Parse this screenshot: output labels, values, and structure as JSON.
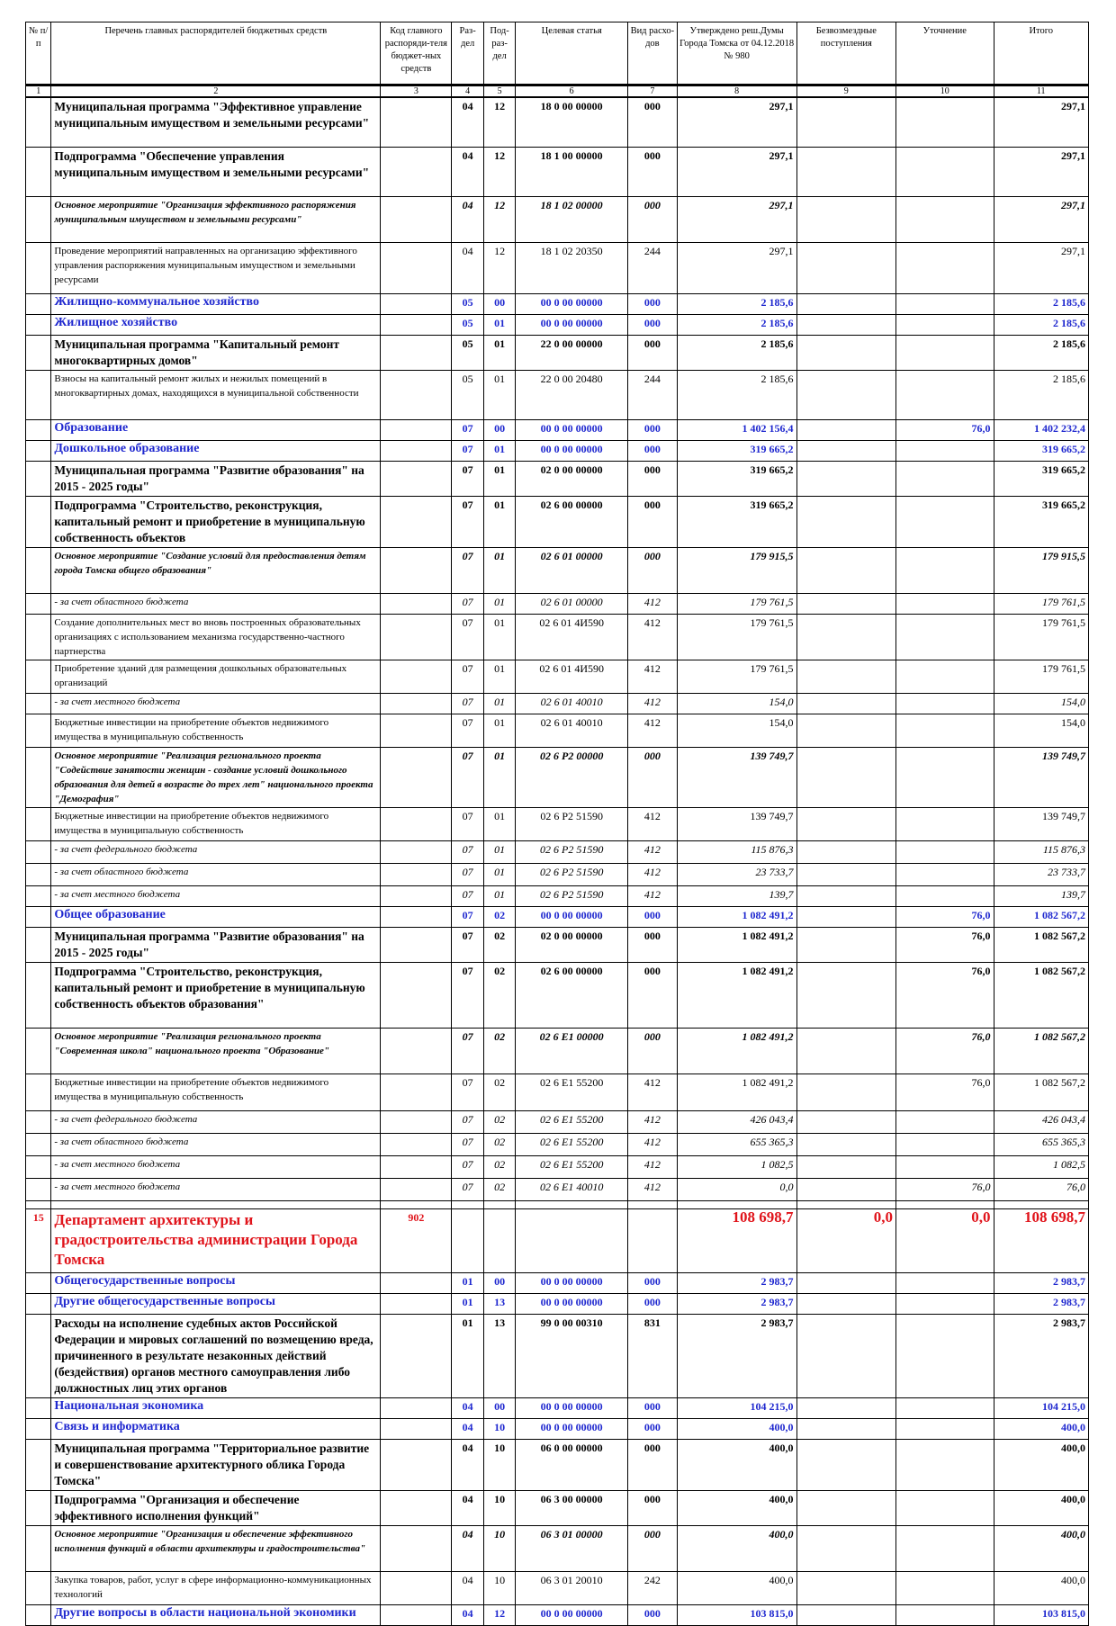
{
  "header": {
    "col1": "№ п/п",
    "col2": "Перечень главных распорядителей бюджетных средств",
    "col3": "Код главного распоряди-теля бюджет-ных средств",
    "col4": "Раз-дел",
    "col5": "Под-раз-дел",
    "col6": "Целевая статья",
    "col7": "Вид расхо-дов",
    "col8": "Утверждено реш.Думы Города Томска от 04.12.2018 № 980",
    "col9": "Безвозмездные поступления",
    "col10": "Уточнение",
    "col11": "Итого"
  },
  "colnums": [
    "1",
    "2",
    "3",
    "4",
    "5",
    "6",
    "7",
    "8",
    "9",
    "10",
    "11"
  ],
  "rows": [
    {
      "style": "bold",
      "h": 52,
      "num": "",
      "name": "Муниципальная программа \"Эффективное управление муниципальным имуществом и земельными ресурсами\"",
      "code": "",
      "razd": "04",
      "podr": "12",
      "cs": "18 0 00 00000",
      "vr": "000",
      "v8": "297,1",
      "v9": "",
      "v10": "",
      "v11": "297,1"
    },
    {
      "style": "bold",
      "h": 52,
      "num": "",
      "name": "Подпрограмма \"Обеспечение управления муниципальным имуществом и земельными ресурсами\"",
      "code": "",
      "razd": "04",
      "podr": "12",
      "cs": "18 1 00 00000",
      "vr": "000",
      "v8": "297,1",
      "v9": "",
      "v10": "",
      "v11": "297,1"
    },
    {
      "style": "boldital",
      "h": 48,
      "num": "",
      "name": "Основное мероприятие \"Организация эффективного распоряжения муниципальным имуществом и земельными ресурсами\"",
      "code": "",
      "razd": "04",
      "podr": "12",
      "cs": "18 1 02 00000",
      "vr": "000",
      "v8": "297,1",
      "v9": "",
      "v10": "",
      "v11": "297,1"
    },
    {
      "style": "plain",
      "h": 54,
      "num": "",
      "name": "Проведение мероприятий направленных на организацию эффективного управления распоряжения муниципальным имуществом и земельными ресурсами",
      "code": "",
      "razd": "04",
      "podr": "12",
      "cs": "18 1 02 20350",
      "vr": "244",
      "v8": "297,1",
      "v9": "",
      "v10": "",
      "v11": "297,1"
    },
    {
      "style": "blue",
      "h": 20,
      "num": "",
      "name": "Жилищно-коммунальное хозяйство",
      "code": "",
      "razd": "05",
      "podr": "00",
      "cs": "00 0 00 00000",
      "vr": "000",
      "v8": "2 185,6",
      "v9": "",
      "v10": "",
      "v11": "2 185,6"
    },
    {
      "style": "blue",
      "h": 20,
      "num": "",
      "name": "Жилищное хозяйство",
      "code": "",
      "razd": "05",
      "podr": "01",
      "cs": "00 0 00 00000",
      "vr": "000",
      "v8": "2 185,6",
      "v9": "",
      "v10": "",
      "v11": "2 185,6"
    },
    {
      "style": "bold",
      "h": 34,
      "num": "",
      "name": "Муниципальная программа \"Капитальный ремонт многоквартирных домов\"",
      "code": "",
      "razd": "05",
      "podr": "01",
      "cs": "22 0 00 00000",
      "vr": "000",
      "v8": "2 185,6",
      "v9": "",
      "v10": "",
      "v11": "2 185,6"
    },
    {
      "style": "plain",
      "h": 52,
      "num": "",
      "name": "Взносы на капитальный ремонт жилых и нежилых помещений в многоквартирных домах, находящихся в муниципальной собственности",
      "code": "",
      "razd": "05",
      "podr": "01",
      "cs": "22 0 00 20480",
      "vr": "244",
      "v8": "2 185,6",
      "v9": "",
      "v10": "",
      "v11": "2 185,6"
    },
    {
      "style": "blue",
      "h": 20,
      "num": "",
      "name": "Образование",
      "code": "",
      "razd": "07",
      "podr": "00",
      "cs": "00 0 00 00000",
      "vr": "000",
      "v8": "1 402 156,4",
      "v9": "",
      "v10": "76,0",
      "v11": "1 402 232,4"
    },
    {
      "style": "blue",
      "h": 20,
      "num": "",
      "name": "Дошкольное образование",
      "code": "",
      "razd": "07",
      "podr": "01",
      "cs": "00 0 00 00000",
      "vr": "000",
      "v8": "319 665,2",
      "v9": "",
      "v10": "",
      "v11": "319 665,2"
    },
    {
      "style": "bold",
      "h": 34,
      "num": "",
      "name": "Муниципальная программа \"Развитие образования\" на 2015 - 2025 годы\"",
      "code": "",
      "razd": "07",
      "podr": "01",
      "cs": "02 0 00 00000",
      "vr": "000",
      "v8": "319 665,2",
      "v9": "",
      "v10": "",
      "v11": "319 665,2"
    },
    {
      "style": "bold",
      "h": 52,
      "num": "",
      "name": "Подпрограмма \"Строительство, реконструкция, капитальный ремонт и приобретение в муниципальную собственность объектов",
      "code": "",
      "razd": "07",
      "podr": "01",
      "cs": "02 6 00 00000",
      "vr": "000",
      "v8": "319 665,2",
      "v9": "",
      "v10": "",
      "v11": "319 665,2"
    },
    {
      "style": "boldital",
      "h": 48,
      "num": "",
      "name": "Основное мероприятие \"Создание условий для предоставления детям города Томска общего образования\"",
      "code": "",
      "razd": "07",
      "podr": "01",
      "cs": "02 6 01 00000",
      "vr": "000",
      "v8": "179 915,5",
      "v9": "",
      "v10": "",
      "v11": "179 915,5"
    },
    {
      "style": "ital",
      "h": 20,
      "num": "",
      "name": "- за счет областного бюджета",
      "code": "",
      "razd": "07",
      "podr": "01",
      "cs": "02 6 01 00000",
      "vr": "412",
      "v8": "179 761,5",
      "v9": "",
      "v10": "",
      "v11": "179 761,5"
    },
    {
      "style": "plain",
      "h": 48,
      "num": "",
      "name": "Создание дополнительных мест во вновь построенных образовательных организациях с использованием механизма государственно-частного партнерства",
      "code": "",
      "razd": "07",
      "podr": "01",
      "cs": "02 6 01 4И590",
      "vr": "412",
      "v8": "179 761,5",
      "v9": "",
      "v10": "",
      "v11": "179 761,5"
    },
    {
      "style": "plain",
      "h": 34,
      "num": "",
      "name": "Приобретение зданий для размещения дошкольных образовательных организаций",
      "code": "",
      "razd": "07",
      "podr": "01",
      "cs": "02 6 01 4И590",
      "vr": "412",
      "v8": "179 761,5",
      "v9": "",
      "v10": "",
      "v11": "179 761,5"
    },
    {
      "style": "ital",
      "h": 20,
      "num": "",
      "name": "- за счет местного бюджета",
      "code": "",
      "razd": "07",
      "podr": "01",
      "cs": "02 6 01 40010",
      "vr": "412",
      "v8": "154,0",
      "v9": "",
      "v10": "",
      "v11": "154,0"
    },
    {
      "style": "plain",
      "h": 34,
      "num": "",
      "name": "Бюджетные инвестиции на приобретение объектов недвижимого имущества в муниципальную собственность",
      "code": "",
      "razd": "07",
      "podr": "01",
      "cs": "02 6 01 40010",
      "vr": "412",
      "v8": "154,0",
      "v9": "",
      "v10": "",
      "v11": "154,0"
    },
    {
      "style": "boldital",
      "h": 64,
      "num": "",
      "name": "Основное мероприятие \"Реализация регионального проекта \"Содействие занятости женщин - создание условий дошкольного образования для детей в возрасте до трех лет\" национального проекта \"Демография\"",
      "code": "",
      "razd": "07",
      "podr": "01",
      "cs": "02 6 P2 00000",
      "vr": "000",
      "v8": "139 749,7",
      "v9": "",
      "v10": "",
      "v11": "139 749,7"
    },
    {
      "style": "plain",
      "h": 34,
      "num": "",
      "name": "Бюджетные инвестиции на приобретение объектов недвижимого имущества в муниципальную собственность",
      "code": "",
      "razd": "07",
      "podr": "01",
      "cs": "02 6 P2 51590",
      "vr": "412",
      "v8": "139 749,7",
      "v9": "",
      "v10": "",
      "v11": "139 749,7"
    },
    {
      "style": "ital",
      "h": 22,
      "num": "",
      "name": "- за счет федерального бюджета",
      "code": "",
      "razd": "07",
      "podr": "01",
      "cs": "02 6 P2 51590",
      "vr": "412",
      "v8": "115 876,3",
      "v9": "",
      "v10": "",
      "v11": "115 876,3"
    },
    {
      "style": "ital",
      "h": 22,
      "num": "",
      "name": "- за счет областного бюджета",
      "code": "",
      "razd": "07",
      "podr": "01",
      "cs": "02 6 P2 51590",
      "vr": "412",
      "v8": "23 733,7",
      "v9": "",
      "v10": "",
      "v11": "23 733,7"
    },
    {
      "style": "ital",
      "h": 20,
      "num": "",
      "name": "- за счет местного бюджета",
      "code": "",
      "razd": "07",
      "podr": "01",
      "cs": "02 6 P2 51590",
      "vr": "412",
      "v8": "139,7",
      "v9": "",
      "v10": "",
      "v11": "139,7"
    },
    {
      "style": "blue",
      "h": 20,
      "num": "",
      "name": "Общее образование",
      "code": "",
      "razd": "07",
      "podr": "02",
      "cs": "00 0 00 00000",
      "vr": "000",
      "v8": "1 082 491,2",
      "v9": "",
      "v10": "76,0",
      "v11": "1 082 567,2"
    },
    {
      "style": "bold",
      "h": 34,
      "num": "",
      "name": "Муниципальная программа \"Развитие образования\" на 2015 - 2025 годы\"",
      "code": "",
      "razd": "07",
      "podr": "02",
      "cs": "02 0 00 00000",
      "vr": "000",
      "v8": "1 082 491,2",
      "v9": "",
      "v10": "76,0",
      "v11": "1 082 567,2"
    },
    {
      "style": "bold",
      "h": 70,
      "num": "",
      "name": "Подпрограмма \"Строительство, реконструкция, капитальный ремонт и приобретение в муниципальную собственность объектов образования\"",
      "code": "",
      "razd": "07",
      "podr": "02",
      "cs": "02 6 00 00000",
      "vr": "000",
      "v8": "1 082 491,2",
      "v9": "",
      "v10": "76,0",
      "v11": "1 082 567,2"
    },
    {
      "style": "boldital",
      "h": 48,
      "num": "",
      "name": "Основное мероприятие \"Реализация регионального проекта \"Современная школа\" национального проекта \"Образование\"",
      "code": "",
      "razd": "07",
      "podr": "02",
      "cs": "02 6 E1 00000",
      "vr": "000",
      "v8": "1 082 491,2",
      "v9": "",
      "v10": "76,0",
      "v11": "1 082 567,2"
    },
    {
      "style": "plain",
      "h": 38,
      "num": "",
      "name": "Бюджетные инвестиции на приобретение объектов недвижимого имущества в муниципальную собственность",
      "code": "",
      "razd": "07",
      "podr": "02",
      "cs": "02 6 E1 55200",
      "vr": "412",
      "v8": "1 082 491,2",
      "v9": "",
      "v10": "76,0",
      "v11": "1 082 567,2"
    },
    {
      "style": "ital",
      "h": 22,
      "num": "",
      "name": "- за счет федерального бюджета",
      "code": "",
      "razd": "07",
      "podr": "02",
      "cs": "02 6 E1 55200",
      "vr": "412",
      "v8": "426 043,4",
      "v9": "",
      "v10": "",
      "v11": "426 043,4"
    },
    {
      "style": "ital",
      "h": 22,
      "num": "",
      "name": "- за счет областного бюджета",
      "code": "",
      "razd": "07",
      "podr": "02",
      "cs": "02 6 E1 55200",
      "vr": "412",
      "v8": "655 365,3",
      "v9": "",
      "v10": "",
      "v11": "655 365,3"
    },
    {
      "style": "ital",
      "h": 22,
      "num": "",
      "name": "- за счет местного бюджета",
      "code": "",
      "razd": "07",
      "podr": "02",
      "cs": "02 6 E1 55200",
      "vr": "412",
      "v8": "1 082,5",
      "v9": "",
      "v10": "",
      "v11": "1 082,5"
    },
    {
      "style": "ital",
      "h": 22,
      "num": "",
      "name": "- за счет местного бюджета",
      "code": "",
      "razd": "07",
      "podr": "02",
      "cs": "02 6 E1 40010",
      "vr": "412",
      "v8": "0,0",
      "v9": "",
      "v10": "76,0",
      "v11": "76,0"
    },
    {
      "style": "spacer",
      "h": 8
    },
    {
      "style": "red",
      "h": 68,
      "num": "15",
      "name": "Департамент архитектуры и градостроительства администрации Города Томска",
      "code": "902",
      "razd": "",
      "podr": "",
      "cs": "",
      "vr": "",
      "v8": "108 698,7",
      "v9": "0,0",
      "v10": "0,0",
      "v11": "108 698,7"
    },
    {
      "style": "blue",
      "h": 20,
      "num": "",
      "name": "Общегосударственные вопросы",
      "code": "",
      "razd": "01",
      "podr": "00",
      "cs": "00 0 00 00000",
      "vr": "000",
      "v8": "2 983,7",
      "v9": "",
      "v10": "",
      "v11": "2 983,7"
    },
    {
      "style": "blue",
      "h": 20,
      "num": "",
      "name": "Другие общегосударственные вопросы",
      "code": "",
      "razd": "01",
      "podr": "13",
      "cs": "00 0 00 00000",
      "vr": "000",
      "v8": "2 983,7",
      "v9": "",
      "v10": "",
      "v11": "2 983,7"
    },
    {
      "style": "bold",
      "h": 86,
      "num": "",
      "name": "Расходы на исполнение судебных актов Российской Федерации и мировых соглашений по возмещению вреда, причиненного в результате незаконных действий (бездействия) органов местного самоуправления либо должностных лиц этих органов",
      "code": "",
      "razd": "01",
      "podr": "13",
      "cs": "99 0 00 00310",
      "vr": "831",
      "v8": "2 983,7",
      "v9": "",
      "v10": "",
      "v11": "2 983,7"
    },
    {
      "style": "blue",
      "h": 20,
      "num": "",
      "name": "Национальная экономика",
      "code": "",
      "razd": "04",
      "podr": "00",
      "cs": "00 0 00 00000",
      "vr": "000",
      "v8": "104 215,0",
      "v9": "",
      "v10": "",
      "v11": "104 215,0"
    },
    {
      "style": "blue",
      "h": 20,
      "num": "",
      "name": "Связь и информатика",
      "code": "",
      "razd": "04",
      "podr": "10",
      "cs": "00 0 00 00000",
      "vr": "000",
      "v8": "400,0",
      "v9": "",
      "v10": "",
      "v11": "400,0"
    },
    {
      "style": "bold",
      "h": 52,
      "num": "",
      "name": "Муниципальная программа \"Территориальное развитие и совершенствование архитектурного облика Города Томска\"",
      "code": "",
      "razd": "04",
      "podr": "10",
      "cs": "06 0 00 00000",
      "vr": "000",
      "v8": "400,0",
      "v9": "",
      "v10": "",
      "v11": "400,0"
    },
    {
      "style": "bold",
      "h": 34,
      "num": "",
      "name": "Подпрограмма \"Организация и обеспечение эффективного исполнения функций\"",
      "code": "",
      "razd": "04",
      "podr": "10",
      "cs": "06 3 00 00000",
      "vr": "000",
      "v8": "400,0",
      "v9": "",
      "v10": "",
      "v11": "400,0"
    },
    {
      "style": "boldital",
      "h": 48,
      "num": "",
      "name": "Основное мероприятие \"Организация и обеспечение эффективного исполнения функций в области архитектуры и градостроительства\"",
      "code": "",
      "razd": "04",
      "podr": "10",
      "cs": "06 3 01 00000",
      "vr": "000",
      "v8": "400,0",
      "v9": "",
      "v10": "",
      "v11": "400,0"
    },
    {
      "style": "plain",
      "h": 34,
      "num": "",
      "name": "Закупка товаров, работ, услуг в сфере информационно-коммуникационных технологий",
      "code": "",
      "razd": "04",
      "podr": "10",
      "cs": "06 3 01 20010",
      "vr": "242",
      "v8": "400,0",
      "v9": "",
      "v10": "",
      "v11": "400,0"
    },
    {
      "style": "blue",
      "h": 20,
      "num": "",
      "name": "Другие вопросы в области национальной экономики",
      "code": "",
      "razd": "04",
      "podr": "12",
      "cs": "00 0 00 00000",
      "vr": "000",
      "v8": "103 815,0",
      "v9": "",
      "v10": "",
      "v11": "103 815,0"
    }
  ]
}
